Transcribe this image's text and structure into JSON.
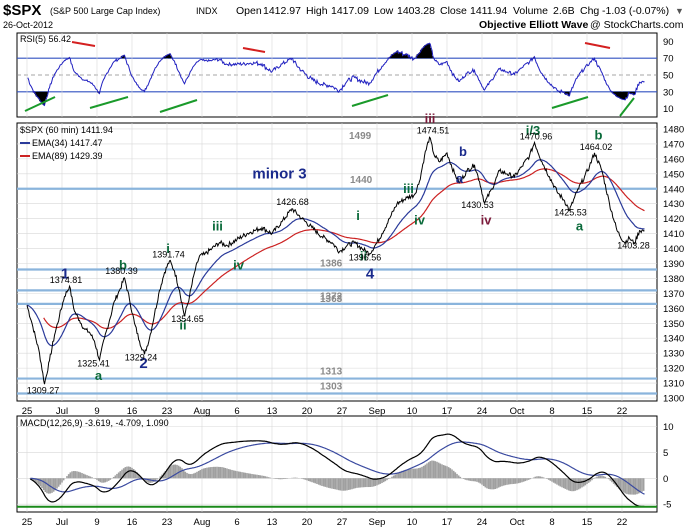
{
  "chart_data": {
    "type": "line",
    "header": {
      "symbol": "$SPX",
      "description": "(S&P 500 Large Cap Index)",
      "exchange": "INDX",
      "date": "26-Oct-2012",
      "ohlc_text": "Open 1412.97  High 1417.09  Low 1403.28  Close 1411.94  Volume 2.6B  Chg -1.03 (-0.07%)",
      "brand": "Objective Elliott Wave",
      "watermark": "@ StockCharts.com",
      "open": "1412.97",
      "high": "1417.09",
      "low": "1403.28",
      "close": "1411.94",
      "volume": "2.6B",
      "chg": "-1.03 (-0.07%)"
    },
    "rsi": {
      "label": "RSI(5) 56.42",
      "ylim": [
        0,
        100
      ],
      "ticks": [
        10,
        30,
        50,
        70,
        90
      ],
      "levels": [
        30,
        50,
        70
      ]
    },
    "price": {
      "legend_main": "$SPX (60 min) 1411.94",
      "legend_ema34": "EMA(34) 1417.47",
      "legend_ema89": "EMA(89) 1429.39",
      "ylim": [
        1298,
        1484
      ],
      "ticks": [
        1300,
        1310,
        1320,
        1330,
        1340,
        1350,
        1360,
        1370,
        1380,
        1390,
        1400,
        1410,
        1420,
        1430,
        1440,
        1450,
        1460,
        1470,
        1480
      ],
      "support_lines": [
        1499,
        1440,
        1386,
        1372,
        1363,
        1313,
        1303
      ],
      "support_labels": [
        "1499",
        "1440",
        "1386",
        "1372",
        "1363",
        "1313",
        "1303"
      ],
      "x_ticks": [
        "25",
        "Jul",
        "9",
        "16",
        "23",
        "Aug",
        "6",
        "13",
        "20",
        "27",
        "Sep",
        "10",
        "17",
        "24",
        "Oct",
        "8",
        "15",
        "22"
      ],
      "x_tick_days": [
        0,
        7,
        14,
        21,
        28,
        35,
        42,
        49,
        56,
        63,
        70,
        77,
        84,
        91,
        98,
        105,
        112,
        119
      ],
      "keypoints": [
        [
          0,
          1362
        ],
        [
          1,
          1350
        ],
        [
          2.5,
          1330
        ],
        [
          3.5,
          1309.27
        ],
        [
          4.5,
          1325
        ],
        [
          5.5,
          1342
        ],
        [
          6.5,
          1355
        ],
        [
          7.5,
          1368
        ],
        [
          8.5,
          1374.81
        ],
        [
          9.5,
          1358
        ],
        [
          10.5,
          1352
        ],
        [
          11.5,
          1346
        ],
        [
          12.5,
          1344
        ],
        [
          13.5,
          1338
        ],
        [
          14.5,
          1325.41
        ],
        [
          15.5,
          1340
        ],
        [
          16.5,
          1352
        ],
        [
          17.5,
          1365
        ],
        [
          18.5,
          1372
        ],
        [
          19.5,
          1380.39
        ],
        [
          20.5,
          1366
        ],
        [
          21.5,
          1350
        ],
        [
          22.5,
          1338
        ],
        [
          23.5,
          1329.24
        ],
        [
          24.5,
          1340
        ],
        [
          25.5,
          1356
        ],
        [
          26.5,
          1372
        ],
        [
          27.5,
          1384
        ],
        [
          28.5,
          1391.74
        ],
        [
          29.5,
          1385
        ],
        [
          30.5,
          1372
        ],
        [
          31.5,
          1354.65
        ],
        [
          32.5,
          1368
        ],
        [
          33.5,
          1384
        ],
        [
          34.5,
          1395
        ],
        [
          35.5,
          1396
        ],
        [
          37,
          1400
        ],
        [
          38.5,
          1404
        ],
        [
          40,
          1402
        ],
        [
          42,
          1406
        ],
        [
          44,
          1410
        ],
        [
          45.5,
          1412
        ],
        [
          47,
          1414
        ],
        [
          49,
          1410
        ],
        [
          51,
          1418
        ],
        [
          53,
          1426.68
        ],
        [
          55,
          1420
        ],
        [
          57,
          1414
        ],
        [
          59,
          1408
        ],
        [
          61,
          1404
        ],
        [
          62.5,
          1398
        ],
        [
          64,
          1402
        ],
        [
          65.5,
          1404
        ],
        [
          67,
          1400
        ],
        [
          68.5,
          1396.56
        ],
        [
          70,
          1404
        ],
        [
          71,
          1410
        ],
        [
          72.5,
          1420
        ],
        [
          74,
          1430
        ],
        [
          76,
          1434
        ],
        [
          77.5,
          1436
        ],
        [
          78.5,
          1445
        ],
        [
          79.5,
          1462
        ],
        [
          80.5,
          1474.51
        ],
        [
          81.5,
          1462
        ],
        [
          82.5,
          1458
        ],
        [
          84,
          1464
        ],
        [
          85.5,
          1450
        ],
        [
          86.5,
          1444
        ],
        [
          88,
          1452
        ],
        [
          89.5,
          1456
        ],
        [
          90.5,
          1445
        ],
        [
          91.5,
          1430.53
        ],
        [
          93,
          1440
        ],
        [
          94.5,
          1452
        ],
        [
          96,
          1450
        ],
        [
          97.5,
          1448
        ],
        [
          99,
          1455
        ],
        [
          100.5,
          1462
        ],
        [
          101.5,
          1470.96
        ],
        [
          103,
          1458
        ],
        [
          104.5,
          1448
        ],
        [
          106,
          1438
        ],
        [
          107.5,
          1432
        ],
        [
          108.5,
          1425.53
        ],
        [
          110,
          1438
        ],
        [
          111.5,
          1448
        ],
        [
          112.5,
          1455
        ],
        [
          113.5,
          1464.02
        ],
        [
          115,
          1452
        ],
        [
          116.5,
          1430
        ],
        [
          118,
          1412
        ],
        [
          119.5,
          1404
        ],
        [
          120.5,
          1407
        ],
        [
          121.5,
          1403.28
        ],
        [
          122.5,
          1412
        ],
        [
          123.5,
          1411.94
        ]
      ]
    },
    "macd": {
      "label": "MACD(12,26,9) -3.619, -4.709, 1.090",
      "ylim": [
        -6.5,
        12
      ],
      "ticks": [
        -5,
        0,
        5,
        10
      ],
      "baseline": -5.5
    },
    "wave_labels": [
      {
        "text": "1",
        "color": "#1a2a8c"
      },
      {
        "text": "2",
        "color": "#1a2a8c"
      },
      {
        "text": "minor 3",
        "color": "#1a2a8c"
      },
      {
        "text": "4",
        "color": "#1a2a8c"
      },
      {
        "text": "iii",
        "color": "#7a1a3a"
      },
      {
        "text": "b",
        "color": "#1a2a8c"
      },
      {
        "text": "a",
        "color": "#1a2a8c"
      },
      {
        "text": "iv",
        "color": "#7a1a3a"
      },
      {
        "text": "i/3",
        "color": "#0a6a3a"
      },
      {
        "text": "b",
        "color": "#0a6a3a"
      },
      {
        "text": "a",
        "color": "#0a6a3a"
      },
      {
        "text": "i",
        "color": "#0a6a3a"
      },
      {
        "text": "ii",
        "color": "#0a6a3a"
      },
      {
        "text": "iii",
        "color": "#0a6a3a"
      },
      {
        "text": "iv",
        "color": "#0a6a3a"
      },
      {
        "text": "b",
        "color": "#0a6a3a"
      },
      {
        "text": "a",
        "color": "#0a6a3a"
      },
      {
        "text": "i",
        "color": "#0a6a3a"
      },
      {
        "text": "ii",
        "color": "#0a6a3a"
      },
      {
        "text": "iii",
        "color": "#0a6a3a"
      },
      {
        "text": "iv",
        "color": "#0a6a3a"
      }
    ],
    "price_labels": [
      "1309.27",
      "1374.81",
      "1325.41",
      "1380.39",
      "1329.24",
      "1391.74",
      "1354.65",
      "1426.68",
      "1396.56",
      "1474.51",
      "1430.53",
      "1470.96",
      "1425.53",
      "1464.02",
      "1403.28"
    ],
    "colors": {
      "price": "#000000",
      "ema34": "#2a3a9a",
      "ema89": "#cc2222",
      "rsi": "#2020c0",
      "support": "#8ab4dc",
      "grid": "#d8d8d8",
      "macd_line": "#000000",
      "macd_signal": "#3a4aa0",
      "macd_hist": "#a0a0a0",
      "baseline": "#1a8a1a"
    }
  }
}
